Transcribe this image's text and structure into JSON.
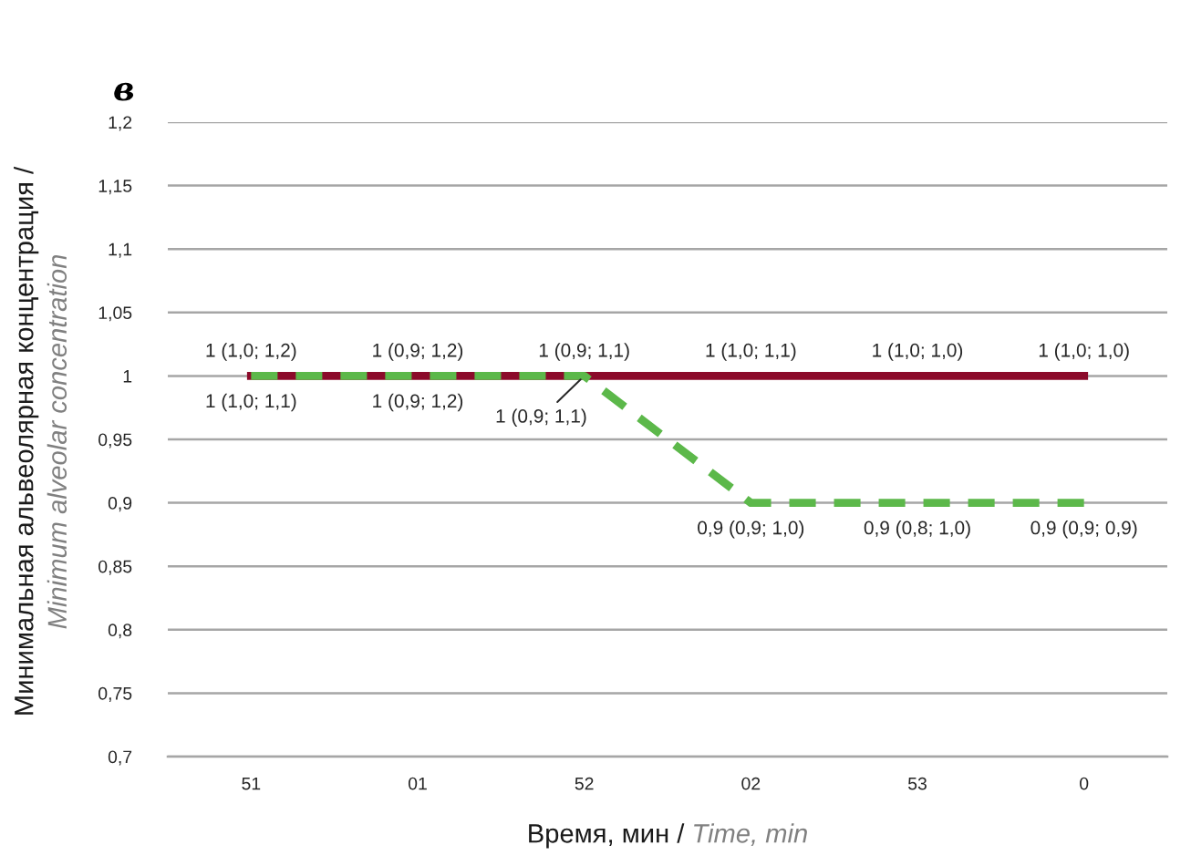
{
  "chart_data": {
    "type": "line",
    "title": "в",
    "xlabel": "Время, мин / Time, min",
    "ylabel": "Минимальная альвеолярная концентрация /\nMinimum alveolar concentration",
    "categories": [
      "51",
      "01",
      "52",
      "02",
      "53",
      "0"
    ],
    "series": [
      {
        "color": "#8b0a2a",
        "line_style": "solid",
        "values": [
          1,
          1,
          1,
          1,
          1,
          1
        ],
        "value_labels": [
          "1 (1,0; 1,2)",
          "1 (0,9; 1,2)",
          "1 (0,9; 1,1)",
          "1 (1,0; 1,1)",
          "1 (1,0; 1,0)",
          "1 (1,0; 1,0)"
        ]
      },
      {
        "color": "#5cb84a",
        "line_style": "dashed",
        "values": [
          1,
          1,
          1,
          0.9,
          0.9,
          0.9
        ],
        "value_labels": [
          "1 (1,0; 1,1)",
          "1 (0,9; 1,2)",
          "1 (0,9; 1,1)",
          "0,9 (0,9; 1,0)",
          "0,9 (0,8; 1,0)",
          "0,9 (0,9; 0,9)"
        ]
      }
    ],
    "ylim": [
      0.7,
      1.2
    ],
    "yticks": [
      {
        "value": 0.7,
        "label": "0,7"
      },
      {
        "value": 0.75,
        "label": "0,75"
      },
      {
        "value": 0.8,
        "label": "0,8"
      },
      {
        "value": 0.85,
        "label": "0,85"
      },
      {
        "value": 0.9,
        "label": "0,9"
      },
      {
        "value": 0.95,
        "label": "0,95"
      },
      1,
      {
        "value": 1.05,
        "label": "1,05"
      },
      {
        "value": 1.1,
        "label": "1,1"
      },
      {
        "value": 1.15,
        "label": "1,15"
      },
      {
        "value": 1.2,
        "label": "1,2"
      }
    ],
    "grid": "y",
    "marker": "none"
  }
}
